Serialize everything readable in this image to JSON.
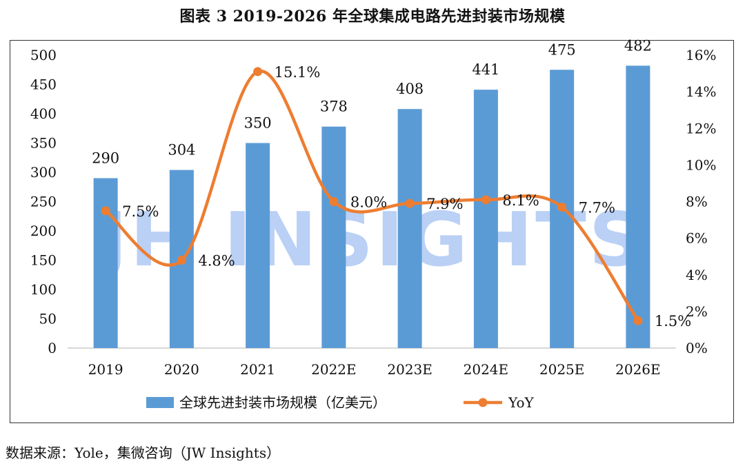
{
  "title": "图表 3 2019-2026 年全球集成电路先进封装市场规模",
  "source": "数据来源：Yole，集微咨询（JW Insights）",
  "watermark": "JH INSIGHTS",
  "colors": {
    "bar": "#5b9bd5",
    "line": "#ed7d31",
    "watermark": "#2f6fe0"
  },
  "chart_data": {
    "type": "bar",
    "categories": [
      "2019",
      "2020",
      "2021",
      "2022E",
      "2023E",
      "2024E",
      "2025E",
      "2026E"
    ],
    "series": [
      {
        "name": "全球先进封装市场规模（亿美元）",
        "type": "bar",
        "axis": "left",
        "values": [
          290,
          304,
          350,
          378,
          408,
          441,
          475,
          482
        ],
        "labels": [
          "290",
          "304",
          "350",
          "378",
          "408",
          "441",
          "475",
          "482"
        ]
      },
      {
        "name": "YoY",
        "type": "line",
        "axis": "right",
        "values": [
          7.5,
          4.8,
          15.1,
          8.0,
          7.9,
          8.1,
          7.7,
          1.5
        ],
        "labels": [
          "7.5%",
          "4.8%",
          "15.1%",
          "8.0%",
          "7.9%",
          "8.1%",
          "7.7%",
          "1.5%"
        ]
      }
    ],
    "y_left": {
      "ylim": [
        0,
        500
      ],
      "ticks": [
        "0",
        "50",
        "100",
        "150",
        "200",
        "250",
        "300",
        "350",
        "400",
        "450",
        "500"
      ]
    },
    "y_right": {
      "ylim": [
        0,
        16
      ],
      "ticks": [
        "0%",
        "2%",
        "4%",
        "6%",
        "8%",
        "10%",
        "12%",
        "14%",
        "16%"
      ]
    },
    "legend": "bottom",
    "grid": false
  }
}
